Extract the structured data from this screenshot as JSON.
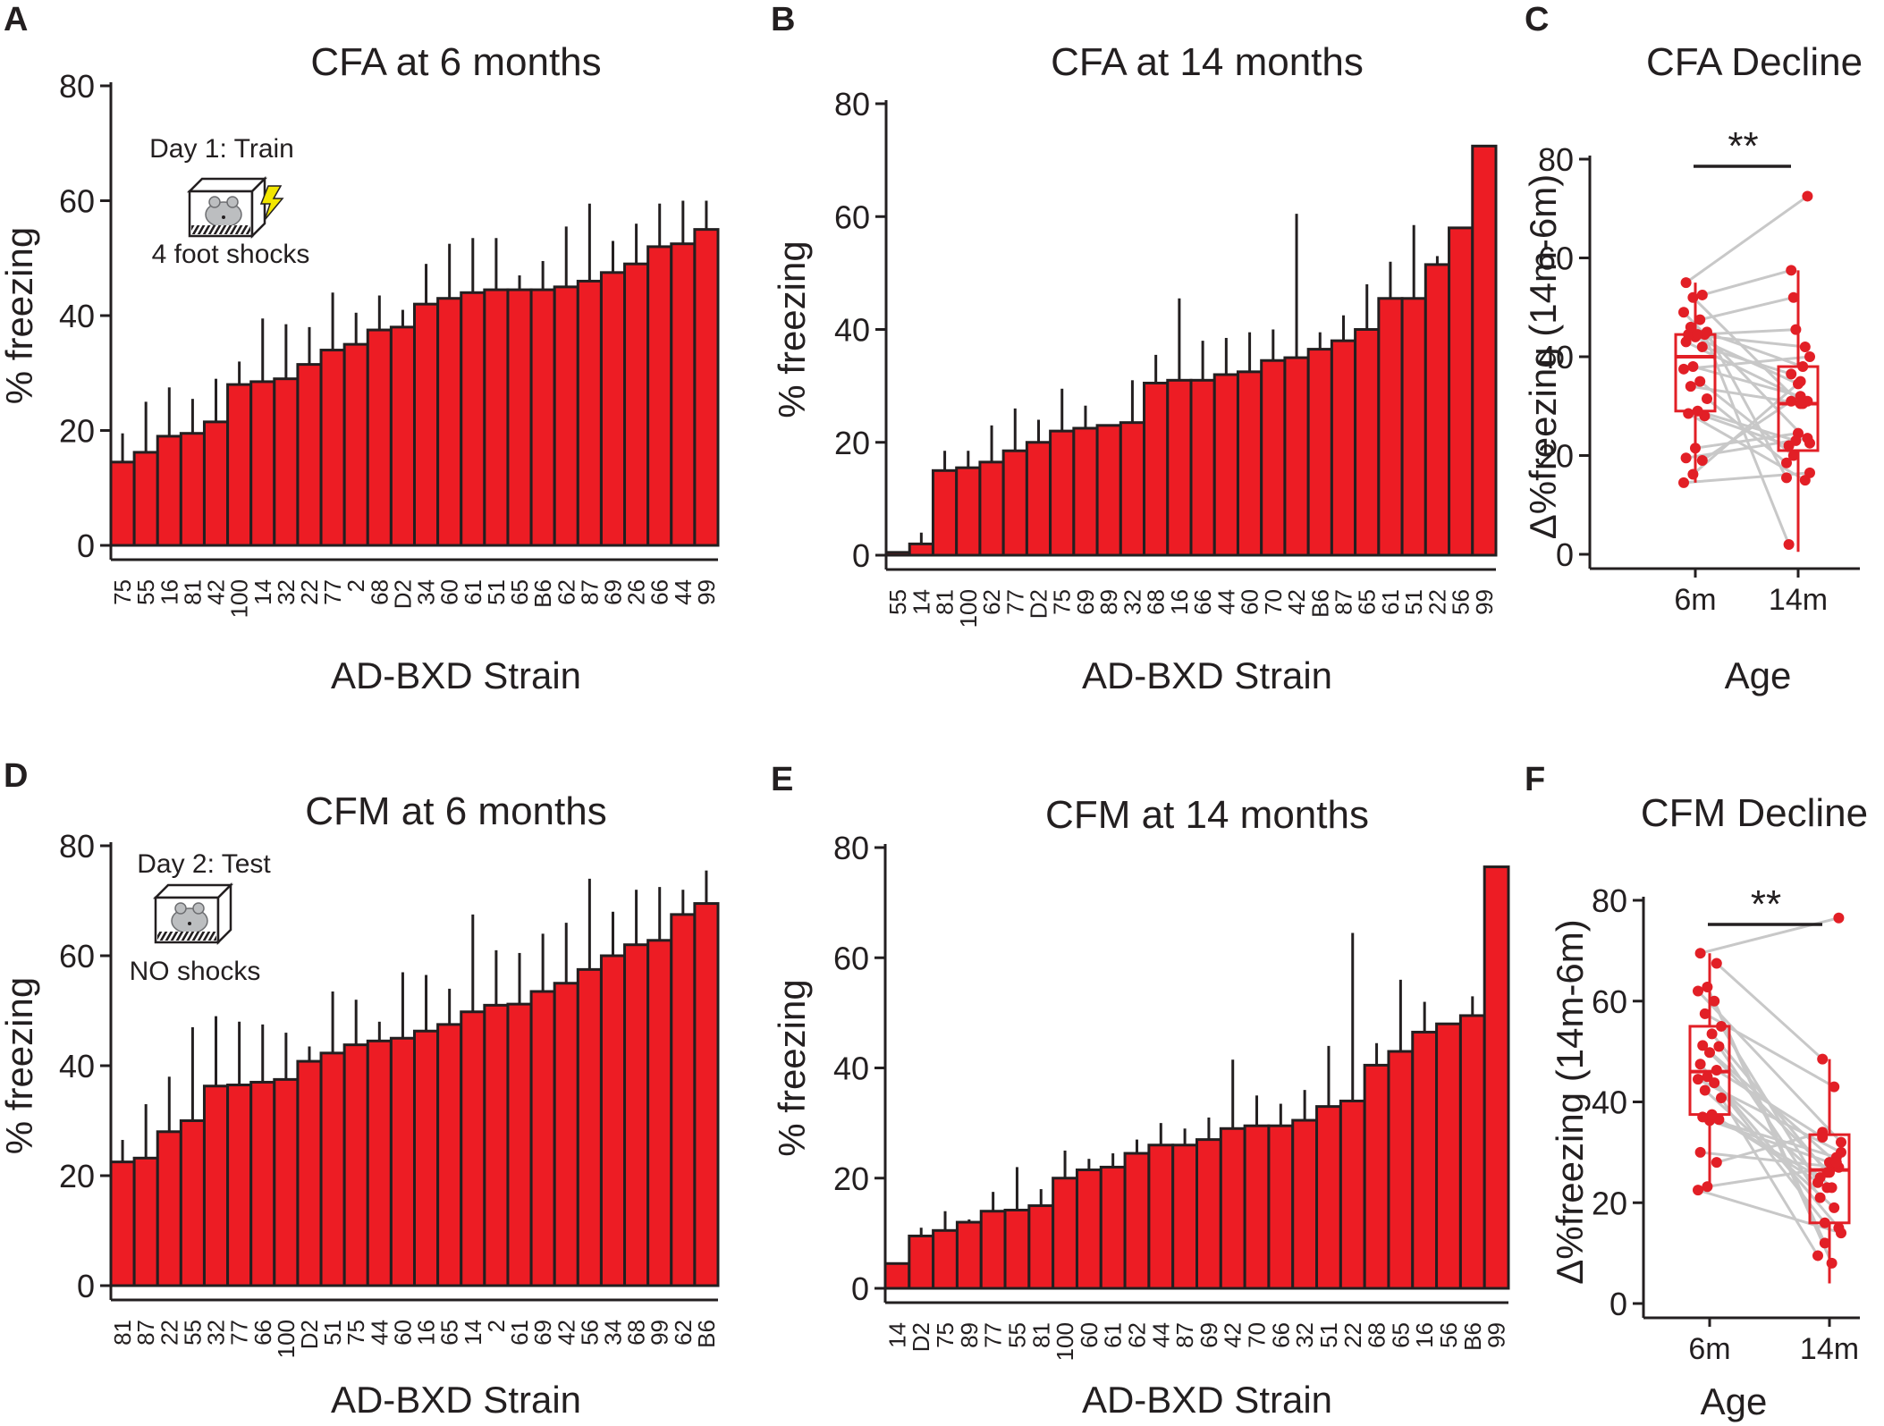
{
  "colors": {
    "bar": "#ed1c24",
    "box": "#e21f26",
    "line": "#c8c8c8",
    "text": "#231f20"
  },
  "chart_data": [
    {
      "panel": "A",
      "type": "bar",
      "title": "CFA at 6 months",
      "xlabel": "AD-BXD Strain",
      "ylabel": "% freezing",
      "ylim": [
        0,
        80
      ],
      "yticks": [
        0,
        20,
        40,
        60,
        80
      ],
      "categories": [
        "75",
        "55",
        "16",
        "81",
        "42",
        "100",
        "14",
        "32",
        "22",
        "77",
        "2",
        "68",
        "D2",
        "34",
        "60",
        "61",
        "51",
        "65",
        "B6",
        "62",
        "87",
        "69",
        "26",
        "66",
        "44",
        "99"
      ],
      "values": [
        14.5,
        16.2,
        19,
        19.5,
        21.5,
        28,
        28.5,
        29,
        31.5,
        34,
        35,
        37.5,
        38,
        42,
        43,
        44,
        44.5,
        44.5,
        44.5,
        45,
        46,
        47.5,
        49,
        52,
        52.5,
        55
      ],
      "error_upper": [
        19.5,
        25,
        27.5,
        25.5,
        29,
        32,
        39.5,
        38.5,
        38,
        44,
        40.5,
        43.5,
        41,
        49,
        52.5,
        53.5,
        53.5,
        47,
        49.5,
        55.5,
        59.5,
        53,
        56,
        59.5,
        60,
        60
      ],
      "inset": {
        "top": "Day 1: Train",
        "bottom": "4 foot shocks"
      }
    },
    {
      "panel": "B",
      "type": "bar",
      "title": "CFA at 14 months",
      "xlabel": "AD-BXD Strain",
      "ylabel": "% freezing",
      "ylim": [
        0,
        80
      ],
      "yticks": [
        0,
        20,
        40,
        60,
        80
      ],
      "categories": [
        "55",
        "14",
        "81",
        "100",
        "62",
        "77",
        "D2",
        "75",
        "69",
        "89",
        "32",
        "68",
        "16",
        "66",
        "44",
        "60",
        "70",
        "42",
        "B6",
        "87",
        "65",
        "61",
        "51",
        "22",
        "56",
        "99"
      ],
      "values": [
        0.5,
        2,
        15,
        15.5,
        16.5,
        18.5,
        20,
        22,
        22.5,
        23,
        23.5,
        30.5,
        31,
        31,
        32,
        32.5,
        34.5,
        35,
        36.5,
        38,
        40,
        45.5,
        45.5,
        51.5,
        58,
        72.5
      ],
      "error_upper": [
        0.5,
        4,
        18.5,
        18.5,
        23,
        26,
        24,
        29.5,
        26.5,
        23,
        31,
        35.5,
        45.5,
        38,
        38.5,
        39.5,
        40,
        60.5,
        39.5,
        42.5,
        48,
        52,
        58.5,
        53,
        58,
        72.5
      ]
    },
    {
      "panel": "C",
      "type": "box",
      "title": "CFA Decline",
      "xlabel": "Age",
      "ylabel": "Δ%freezing (14m-6m)",
      "ylim": [
        0,
        80
      ],
      "yticks": [
        0,
        20,
        40,
        60,
        80
      ],
      "categories": [
        "6m",
        "14m"
      ],
      "box_6m": {
        "q1": 29,
        "median": 40,
        "q3": 44.5,
        "whisker_low": 14.5,
        "whisker_high": 55
      },
      "box_14m": {
        "q1": 21,
        "median": 30.5,
        "q3": 38,
        "whisker_low": 0.5,
        "whisker_high": 57.5
      },
      "pairs": [
        [
          14.5,
          16.5
        ],
        [
          16.2,
          35
        ],
        [
          19,
          31
        ],
        [
          19.5,
          23.5
        ],
        [
          21.5,
          24.5
        ],
        [
          28,
          22
        ],
        [
          28.5,
          15
        ],
        [
          29,
          23
        ],
        [
          31.5,
          18.5
        ],
        [
          34,
          30.5
        ],
        [
          35,
          20
        ],
        [
          37.5,
          40
        ],
        [
          38,
          32
        ],
        [
          42,
          36.5
        ],
        [
          43,
          31
        ],
        [
          44,
          34.5
        ],
        [
          44.5,
          2
        ],
        [
          44.5,
          42
        ],
        [
          44.5,
          45.5
        ],
        [
          45,
          15.5
        ],
        [
          46,
          38
        ],
        [
          47.5,
          52
        ],
        [
          49,
          22.5
        ],
        [
          52,
          30.5
        ],
        [
          52.5,
          57.5
        ],
        [
          55,
          72.5
        ]
      ],
      "significance": "**"
    },
    {
      "panel": "D",
      "type": "bar",
      "title": "CFM at 6 months",
      "xlabel": "AD-BXD Strain",
      "ylabel": "% freezing",
      "ylim": [
        0,
        80
      ],
      "yticks": [
        0,
        20,
        40,
        60,
        80
      ],
      "categories": [
        "81",
        "87",
        "22",
        "55",
        "32",
        "77",
        "66",
        "100",
        "D2",
        "51",
        "75",
        "44",
        "60",
        "16",
        "65",
        "14",
        "2",
        "61",
        "69",
        "42",
        "56",
        "34",
        "68",
        "99",
        "62",
        "B6"
      ],
      "values": [
        22.5,
        23.2,
        28,
        30,
        36.3,
        36.5,
        37,
        37.5,
        40.8,
        42.3,
        43.8,
        44.5,
        45,
        46.3,
        47.5,
        49.8,
        51,
        51.2,
        53.5,
        55,
        57.5,
        60,
        62,
        62.8,
        67.5,
        69.5
      ],
      "error_upper": [
        26.5,
        33,
        38,
        47,
        49,
        48,
        47.5,
        46,
        43.5,
        53.5,
        52,
        48,
        57,
        56.5,
        54,
        67.5,
        61,
        60.5,
        64,
        66,
        74,
        68,
        72,
        72.5,
        72,
        75.5
      ],
      "inset": {
        "top": "Day 2: Test",
        "bottom": "NO shocks"
      }
    },
    {
      "panel": "E",
      "type": "bar",
      "title": "CFM at 14 months",
      "xlabel": "AD-BXD Strain",
      "ylabel": "% freezing",
      "ylim": [
        0,
        80
      ],
      "yticks": [
        0,
        20,
        40,
        60,
        80
      ],
      "categories": [
        "14",
        "D2",
        "75",
        "89",
        "77",
        "55",
        "81",
        "100",
        "60",
        "61",
        "62",
        "44",
        "87",
        "69",
        "42",
        "70",
        "66",
        "32",
        "51",
        "22",
        "68",
        "65",
        "16",
        "56",
        "B6",
        "99"
      ],
      "values": [
        4.5,
        9.5,
        10.5,
        12,
        14,
        14.2,
        15,
        20,
        21.5,
        22,
        24.5,
        26,
        26,
        27,
        29,
        29.5,
        29.5,
        30.5,
        33,
        34,
        40.5,
        43,
        46.5,
        48,
        49.5,
        76.5
      ],
      "error_upper": [
        4.5,
        11,
        14,
        12.5,
        17.5,
        22,
        18,
        25,
        23.5,
        24.5,
        27,
        30,
        29,
        31,
        41.5,
        35,
        33.5,
        36,
        44,
        64.5,
        44.5,
        56,
        52,
        48,
        53,
        76.5
      ]
    },
    {
      "panel": "F",
      "type": "box",
      "title": "CFM Decline",
      "xlabel": "Age",
      "ylabel": "Δ%freezing (14m-6m)",
      "ylim": [
        0,
        80
      ],
      "yticks": [
        0,
        20,
        40,
        60,
        80
      ],
      "categories": [
        "6m",
        "14m"
      ],
      "box_6m": {
        "q1": 37.5,
        "median": 46,
        "q3": 55,
        "whisker_low": 22.5,
        "whisker_high": 69.5
      },
      "box_14m": {
        "q1": 16,
        "median": 26.5,
        "q3": 33.5,
        "whisker_low": 4,
        "whisker_high": 48.5
      },
      "pairs": [
        [
          22.5,
          14
        ],
        [
          23.2,
          27
        ],
        [
          28,
          34
        ],
        [
          30,
          27
        ],
        [
          36.3,
          28
        ],
        [
          36.5,
          25
        ],
        [
          37,
          29
        ],
        [
          37.5,
          23
        ],
        [
          40.8,
          9.5
        ],
        [
          42.3,
          19
        ],
        [
          43.8,
          16
        ],
        [
          44.5,
          30
        ],
        [
          45,
          23
        ],
        [
          46.3,
          33
        ],
        [
          47.5,
          15
        ],
        [
          49.8,
          26
        ],
        [
          51,
          21
        ],
        [
          51.2,
          28
        ],
        [
          53.5,
          26
        ],
        [
          55,
          24
        ],
        [
          57.5,
          43
        ],
        [
          60,
          12
        ],
        [
          62,
          32
        ],
        [
          62.8,
          8
        ],
        [
          67.5,
          48.5
        ],
        [
          69.5,
          76.5
        ]
      ],
      "significance": "**"
    }
  ]
}
